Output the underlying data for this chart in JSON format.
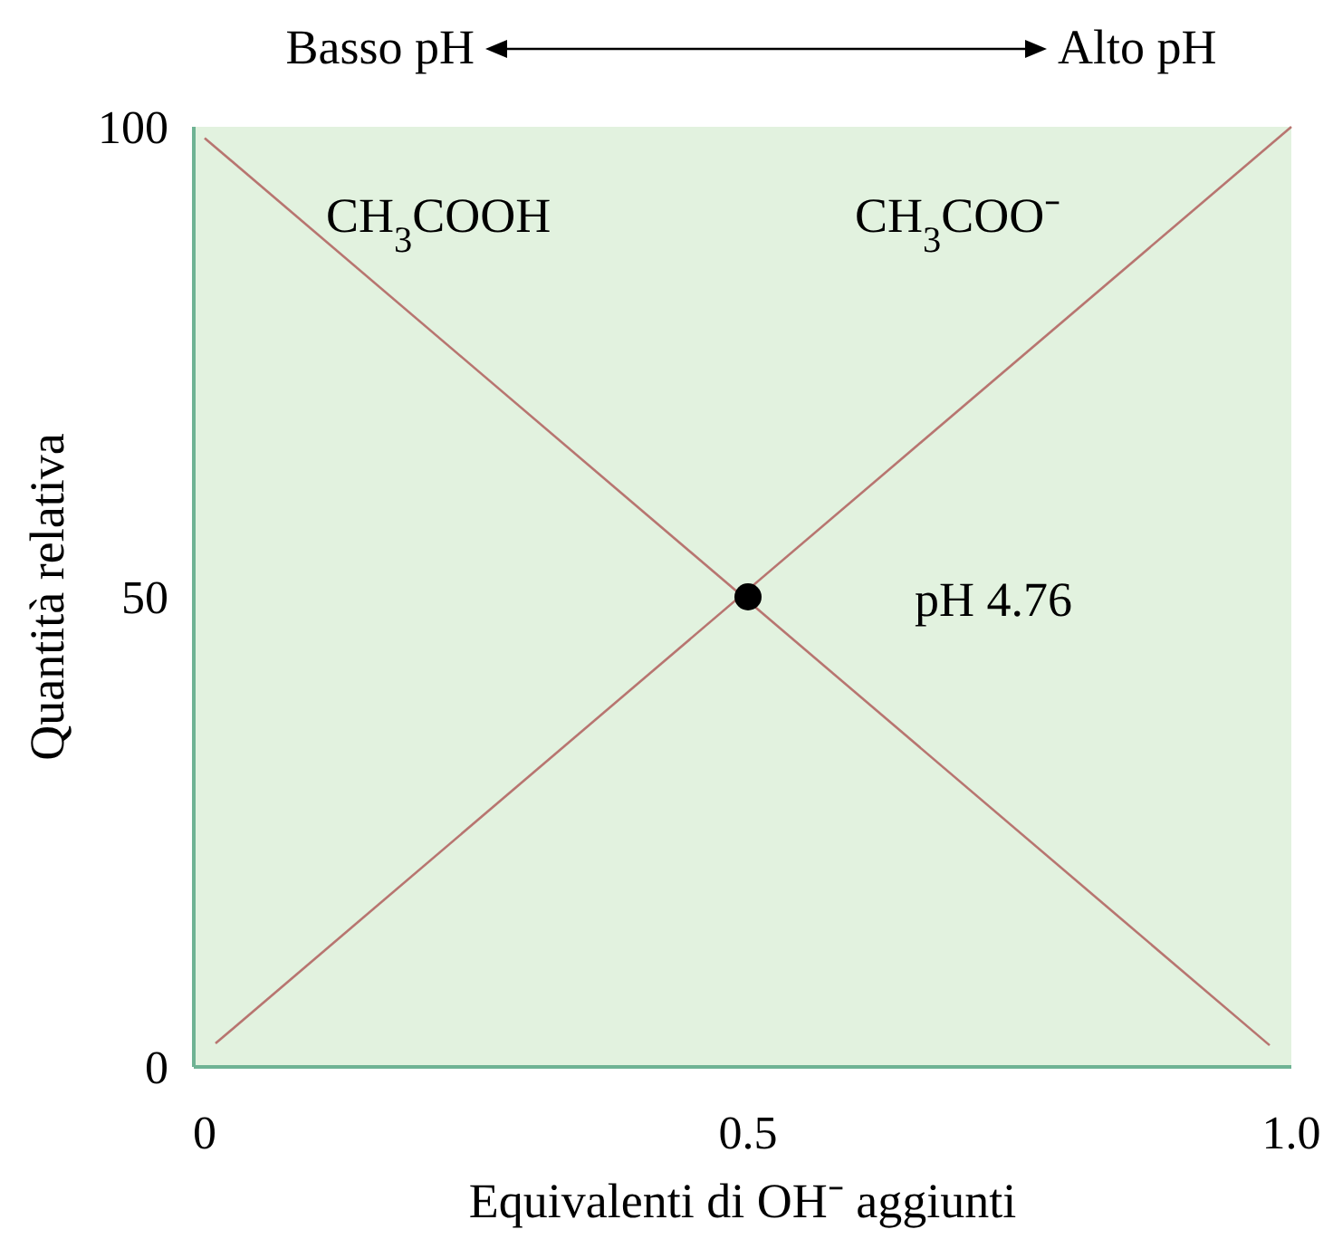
{
  "chart_data": {
    "type": "line",
    "xlabel": "Equivalenti di OH⁻ aggiunti",
    "ylabel": "Quantità relativa",
    "xlim": [
      -0.01,
      1.0
    ],
    "xticks": [
      0,
      0.5,
      {
        "value": 1.0,
        "label": "1.0"
      }
    ],
    "ylim": [
      0,
      100
    ],
    "yticks": [
      0,
      50,
      100
    ],
    "grid": false,
    "line_style": "solid",
    "series": [
      {
        "color": "#b87570",
        "x": [
          0.0,
          0.98
        ],
        "values": [
          98.8,
          2.3
        ]
      },
      {
        "color": "#b87570",
        "x": [
          0.01,
          1.0
        ],
        "values": [
          2.5,
          100
        ]
      },
      {
        "type": "scatter",
        "color": "#000000",
        "x": [
          0.5
        ],
        "values": [
          50
        ],
        "marker": "circle"
      }
    ],
    "annotations": [
      "CH$_{3}$COOH",
      "CH$_{3}$COO⁻",
      "pH 4.76",
      "Basso pH",
      "Alto pH"
    ]
  }
}
